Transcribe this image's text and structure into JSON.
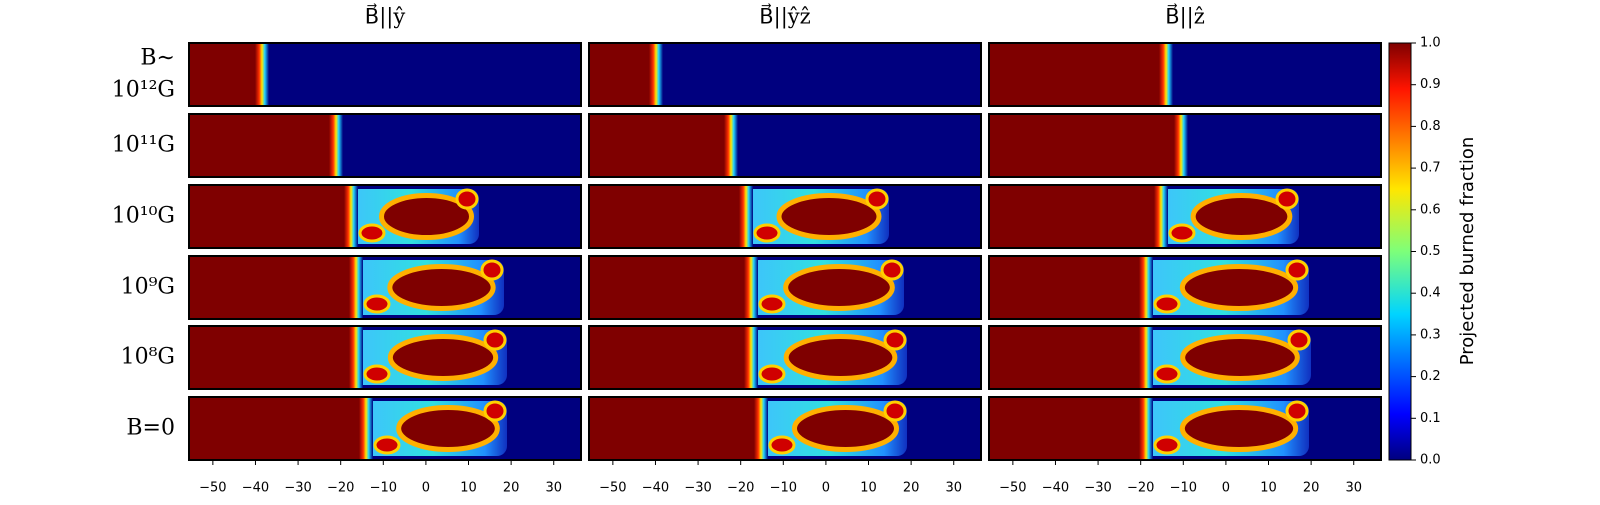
{
  "chart_data": {
    "type": "heatmap",
    "column_titles": [
      "B⃗||ŷ",
      "B⃗||ŷẑ",
      "B⃗||ẑ"
    ],
    "row_labels": [
      [
        "B∼",
        "10¹²G"
      ],
      [
        "10¹¹G"
      ],
      [
        "10¹⁰G"
      ],
      [
        "10⁹G"
      ],
      [
        "10⁸G"
      ],
      [
        "B=0"
      ]
    ],
    "xlim": [
      -55.6,
      36.4
    ],
    "xticks": [
      {
        "value": -50,
        "label": "−50"
      },
      {
        "value": -40,
        "label": "−40"
      },
      {
        "value": -30,
        "label": "−30"
      },
      {
        "value": -20,
        "label": "−20"
      },
      {
        "value": -10,
        "label": "−10"
      },
      0,
      10,
      20,
      30
    ],
    "colorbar": {
      "label": "Projected burned fraction",
      "lim": [
        0,
        1
      ],
      "ticks": [
        {
          "value": 0,
          "label": "0.0"
        },
        0.1,
        0.2,
        0.3,
        0.4,
        0.5,
        0.6,
        0.7,
        0.8,
        0.9,
        {
          "value": 1,
          "label": "1.0"
        }
      ]
    }
  }
}
